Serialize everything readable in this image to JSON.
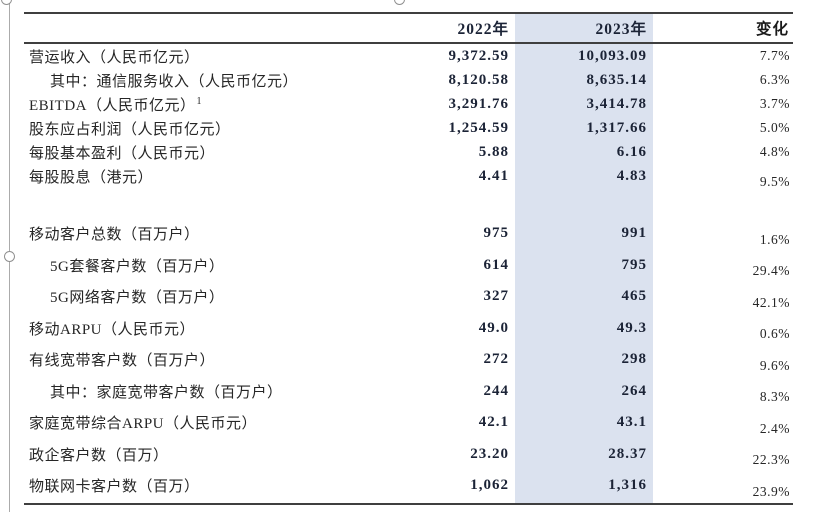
{
  "page": {
    "background": "#ffffff"
  },
  "selection": {
    "handles": [
      "top-left",
      "top-center",
      "middle-left"
    ],
    "border_color": "#ababab"
  },
  "table": {
    "highlight_color": "#dbe2ef",
    "columns": {
      "year_2022": "2022年",
      "year_2023": "2023年",
      "change": "变化"
    },
    "rows": [
      {
        "label": "营运收入（人民币亿元）",
        "sup": "",
        "indent": false,
        "group": 1,
        "v2022": "9,372.59",
        "v2023": "10,093.09",
        "change": "7.7%",
        "change_low": false
      },
      {
        "label": "其中：通信服务收入（人民币亿元）",
        "sup": "",
        "indent": true,
        "group": 1,
        "v2022": "8,120.58",
        "v2023": "8,635.14",
        "change": "6.3%",
        "change_low": false
      },
      {
        "label": "EBITDA（人民币亿元）",
        "sup": "1",
        "indent": false,
        "group": 1,
        "v2022": "3,291.76",
        "v2023": "3,414.78",
        "change": "3.7%",
        "change_low": false
      },
      {
        "label": "股东应占利润（人民币亿元）",
        "sup": "",
        "indent": false,
        "group": 1,
        "v2022": "1,254.59",
        "v2023": "1,317.66",
        "change": "5.0%",
        "change_low": false
      },
      {
        "label": "每股基本盈利（人民币元）",
        "sup": "",
        "indent": false,
        "group": 1,
        "v2022": "5.88",
        "v2023": "6.16",
        "change": "4.8%",
        "change_low": false
      },
      {
        "label": "每股股息（港元）",
        "sup": "",
        "indent": false,
        "group": 1,
        "v2022": "4.41",
        "v2023": "4.83",
        "change": "9.5%",
        "change_low": true
      },
      {
        "label": "移动客户总数（百万户）",
        "sup": "",
        "indent": false,
        "group": 2,
        "v2022": "975",
        "v2023": "991",
        "change": "1.6%",
        "change_low": true
      },
      {
        "label": "5G套餐客户数（百万户）",
        "sup": "",
        "indent": true,
        "group": 2,
        "v2022": "614",
        "v2023": "795",
        "change": "29.4%",
        "change_low": true
      },
      {
        "label": "5G网络客户数（百万户）",
        "sup": "",
        "indent": true,
        "group": 2,
        "v2022": "327",
        "v2023": "465",
        "change": "42.1%",
        "change_low": true
      },
      {
        "label": "移动ARPU（人民币元）",
        "sup": "",
        "indent": false,
        "group": 2,
        "v2022": "49.0",
        "v2023": "49.3",
        "change": "0.6%",
        "change_low": true
      },
      {
        "label": "有线宽带客户数（百万户）",
        "sup": "",
        "indent": false,
        "group": 2,
        "v2022": "272",
        "v2023": "298",
        "change": "9.6%",
        "change_low": true
      },
      {
        "label": "其中：家庭宽带客户数（百万户）",
        "sup": "",
        "indent": true,
        "group": 2,
        "v2022": "244",
        "v2023": "264",
        "change": "8.3%",
        "change_low": true
      },
      {
        "label": "家庭宽带综合ARPU（人民币元）",
        "sup": "",
        "indent": false,
        "group": 2,
        "v2022": "42.1",
        "v2023": "43.1",
        "change": "2.4%",
        "change_low": true
      },
      {
        "label": "政企客户数（百万）",
        "sup": "",
        "indent": false,
        "group": 2,
        "v2022": "23.20",
        "v2023": "28.37",
        "change": "22.3%",
        "change_low": true
      },
      {
        "label": "物联网卡客户数（百万）",
        "sup": "",
        "indent": false,
        "group": 2,
        "v2022": "1,062",
        "v2023": "1,316",
        "change": "23.9%",
        "change_low": true
      }
    ]
  }
}
